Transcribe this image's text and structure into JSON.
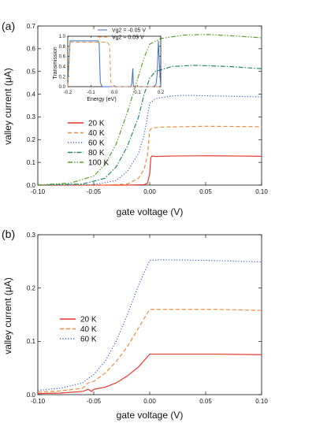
{
  "chart_data": [
    {
      "type": "line",
      "panel_label": "(a)",
      "xlabel": "gate voltage (V)",
      "ylabel": "valley current (μA)",
      "xlim": [
        -0.1,
        0.1
      ],
      "ylim": [
        0,
        0.7
      ],
      "xticks": [
        "-0.10",
        "-0.05",
        "0.00",
        "0.05",
        "0.10"
      ],
      "yticks": [
        "0.0",
        "0.1",
        "0.2",
        "0.3",
        "0.4",
        "0.5",
        "0.6",
        "0.7"
      ],
      "legend_position": "center-left",
      "series": [
        {
          "name": "20 K",
          "color": "#e8372c",
          "dash": "solid",
          "x": [
            -0.1,
            -0.02,
            -0.005,
            -0.002,
            0.0,
            0.001,
            0.002,
            0.005,
            0.02,
            0.05,
            0.08,
            0.1
          ],
          "y": [
            0.0,
            0.0,
            0.002,
            0.008,
            0.05,
            0.12,
            0.128,
            0.126,
            0.128,
            0.129,
            0.128,
            0.127
          ]
        },
        {
          "name": "40 K",
          "color": "#f08a3c",
          "dash": "dashed",
          "x": [
            -0.1,
            -0.04,
            -0.02,
            -0.01,
            -0.005,
            -0.002,
            0.0,
            0.002,
            0.01,
            0.05,
            0.1
          ],
          "y": [
            0.0,
            0.0,
            0.005,
            0.03,
            0.07,
            0.13,
            0.24,
            0.252,
            0.255,
            0.259,
            0.257
          ]
        },
        {
          "name": "60 K",
          "color": "#3a5fcd",
          "dash": "dotted",
          "x": [
            -0.1,
            -0.05,
            -0.03,
            -0.02,
            -0.01,
            -0.005,
            0.0,
            0.005,
            0.02,
            0.03,
            0.06,
            0.1
          ],
          "y": [
            0.0,
            0.002,
            0.02,
            0.06,
            0.14,
            0.22,
            0.36,
            0.38,
            0.392,
            0.395,
            0.392,
            0.388
          ]
        },
        {
          "name": "80 K",
          "color": "#1f8a6a",
          "dash": "dashdot",
          "x": [
            -0.1,
            -0.06,
            -0.04,
            -0.03,
            -0.02,
            -0.01,
            -0.005,
            0.0,
            0.005,
            0.02,
            0.04,
            0.07,
            0.1
          ],
          "y": [
            0.0,
            0.005,
            0.03,
            0.08,
            0.17,
            0.3,
            0.4,
            0.47,
            0.5,
            0.522,
            0.527,
            0.522,
            0.512
          ]
        },
        {
          "name": "100 K",
          "color": "#5aa02c",
          "dash": "dashdotdot",
          "x": [
            -0.1,
            -0.07,
            -0.05,
            -0.04,
            -0.03,
            -0.02,
            -0.01,
            -0.005,
            0.0,
            0.01,
            0.03,
            0.05,
            0.08,
            0.1
          ],
          "y": [
            0.0,
            0.01,
            0.04,
            0.09,
            0.18,
            0.32,
            0.48,
            0.56,
            0.62,
            0.645,
            0.66,
            0.663,
            0.655,
            0.648
          ]
        }
      ],
      "inset": {
        "xlabel": "Energy (eV)",
        "ylabel": "Transmission",
        "xlim": [
          -0.2,
          0.2
        ],
        "ylim": [
          0,
          1.1
        ],
        "xticks": [
          "-0.2",
          "-0.1",
          "0.0",
          "0.1",
          "0.2"
        ],
        "yticks": [
          "0.0",
          "0.2",
          "0.4",
          "0.6",
          "0.8",
          "1.0"
        ],
        "series": [
          {
            "name": "Vg2 = -0.05 V",
            "color": "#3a6fc4",
            "dash": "solid",
            "x": [
              -0.2,
              -0.19,
              -0.07,
              -0.065,
              -0.06,
              -0.055,
              -0.05,
              0.07,
              0.075,
              0.08,
              0.082,
              0.085,
              0.09,
              0.17,
              0.18,
              0.185,
              0.19,
              0.195,
              0.2
            ],
            "y": [
              0.0,
              1.0,
              1.0,
              0.95,
              0.1,
              0.02,
              0.0,
              0.0,
              0.05,
              0.4,
              0.05,
              0.0,
              0.0,
              0.0,
              0.05,
              0.3,
              1.0,
              0.4,
              0.0
            ]
          },
          {
            "name": "Vg2 =  0.05 V",
            "color": "#f08a3c",
            "dash": "dashed",
            "x": [
              -0.2,
              -0.19,
              -0.03,
              -0.02,
              -0.015,
              -0.01,
              0.2
            ],
            "y": [
              0.0,
              0.97,
              0.97,
              0.9,
              0.1,
              0.0,
              0.0
            ]
          }
        ]
      }
    },
    {
      "type": "line",
      "panel_label": "(b)",
      "xlabel": "gate voltage (V)",
      "ylabel": "valley current (μA)",
      "xlim": [
        -0.1,
        0.1
      ],
      "ylim": [
        0,
        0.3
      ],
      "xticks": [
        "-0.10",
        "-0.05",
        "0.00",
        "0.05",
        "0.10"
      ],
      "yticks": [
        "0.0",
        "0.1",
        "0.2",
        "0.3"
      ],
      "legend_position": "center-left",
      "series": [
        {
          "name": "20 K",
          "color": "#e8372c",
          "dash": "solid",
          "x": [
            -0.1,
            -0.08,
            -0.06,
            -0.055,
            -0.052,
            -0.05,
            -0.04,
            -0.03,
            -0.02,
            -0.01,
            0.0,
            0.02,
            0.06,
            0.1
          ],
          "y": [
            0.002,
            0.003,
            0.006,
            0.01,
            0.006,
            0.01,
            0.014,
            0.022,
            0.035,
            0.052,
            0.076,
            0.076,
            0.076,
            0.075
          ]
        },
        {
          "name": "40 K",
          "color": "#f08a3c",
          "dash": "dashed",
          "x": [
            -0.1,
            -0.08,
            -0.06,
            -0.055,
            -0.05,
            -0.04,
            -0.03,
            -0.02,
            -0.01,
            0.0,
            0.02,
            0.06,
            0.1
          ],
          "y": [
            0.005,
            0.007,
            0.012,
            0.022,
            0.025,
            0.04,
            0.062,
            0.09,
            0.125,
            0.16,
            0.16,
            0.16,
            0.158
          ]
        },
        {
          "name": "60 K",
          "color": "#3a5fcd",
          "dash": "dotted",
          "x": [
            -0.1,
            -0.08,
            -0.06,
            -0.05,
            -0.04,
            -0.03,
            -0.02,
            -0.01,
            0.0,
            0.01,
            0.05,
            0.1
          ],
          "y": [
            0.008,
            0.012,
            0.022,
            0.038,
            0.062,
            0.1,
            0.15,
            0.205,
            0.252,
            0.253,
            0.252,
            0.249
          ]
        }
      ]
    }
  ]
}
